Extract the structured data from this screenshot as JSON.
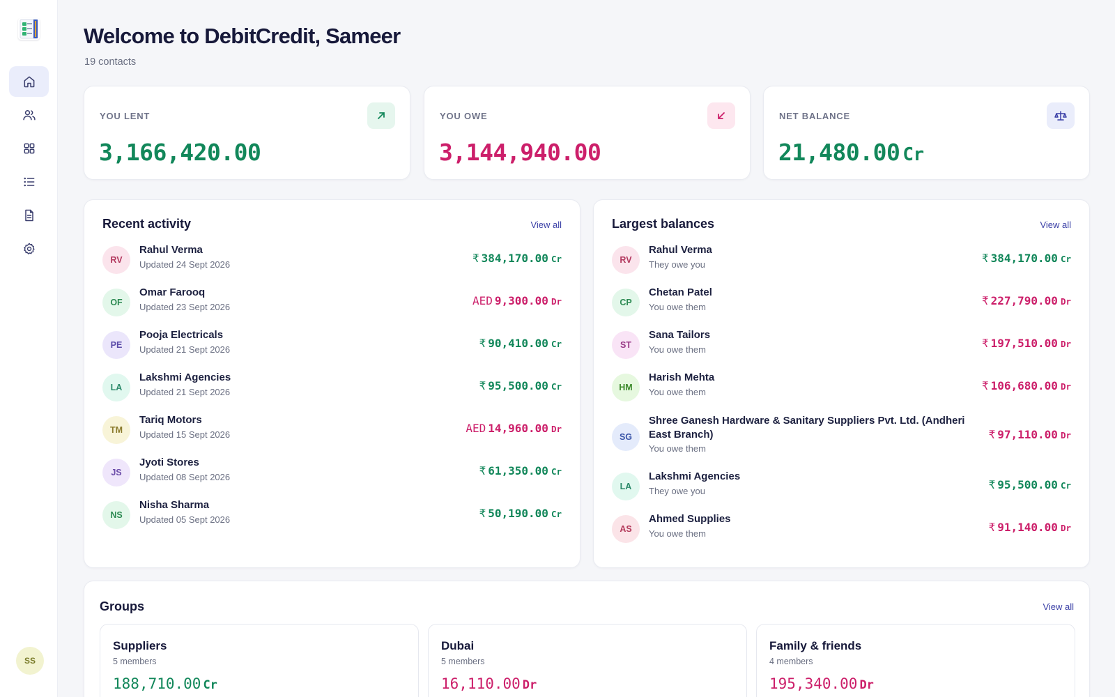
{
  "app": {
    "name": "DebitCredit"
  },
  "sidebar": {
    "nav": [
      {
        "icon": "home-icon",
        "active": true
      },
      {
        "icon": "users-icon",
        "active": false
      },
      {
        "icon": "grid-icon",
        "active": false
      },
      {
        "icon": "list-icon",
        "active": false
      },
      {
        "icon": "document-icon",
        "active": false
      },
      {
        "icon": "gear-icon",
        "active": false
      }
    ],
    "user_initials": "SS"
  },
  "header": {
    "title": "Welcome to DebitCredit, Sameer",
    "subtitle": "19 contacts"
  },
  "stats": {
    "lent": {
      "label": "YOU LENT",
      "value": "3,166,420.00",
      "icon": "arrow-up-right-icon",
      "color": "#12875a"
    },
    "owe": {
      "label": "YOU OWE",
      "value": "3,144,940.00",
      "icon": "arrow-down-left-icon",
      "color": "#cc1f6a"
    },
    "net": {
      "label": "NET BALANCE",
      "value": "21,480.00",
      "suffix": "Cr",
      "icon": "scale-icon",
      "color": "#12875a"
    }
  },
  "recent": {
    "title": "Recent activity",
    "view_all": "View all",
    "items": [
      {
        "initials": "RV",
        "name": "Rahul Verma",
        "meta": "Updated 24 Sept 2026",
        "currency": "₹",
        "amount": "384,170.00",
        "suffix": "Cr"
      },
      {
        "initials": "OF",
        "name": "Omar Farooq",
        "meta": "Updated 23 Sept 2026",
        "currency": "AED",
        "amount": "9,300.00",
        "suffix": "Dr"
      },
      {
        "initials": "PE",
        "name": "Pooja Electricals",
        "meta": "Updated 21 Sept 2026",
        "currency": "₹",
        "amount": "90,410.00",
        "suffix": "Cr"
      },
      {
        "initials": "LA",
        "name": "Lakshmi Agencies",
        "meta": "Updated 21 Sept 2026",
        "currency": "₹",
        "amount": "95,500.00",
        "suffix": "Cr"
      },
      {
        "initials": "TM",
        "name": "Tariq Motors",
        "meta": "Updated 15 Sept 2026",
        "currency": "AED",
        "amount": "14,960.00",
        "suffix": "Dr"
      },
      {
        "initials": "JS",
        "name": "Jyoti Stores",
        "meta": "Updated 08 Sept 2026",
        "currency": "₹",
        "amount": "61,350.00",
        "suffix": "Cr"
      },
      {
        "initials": "NS",
        "name": "Nisha Sharma",
        "meta": "Updated 05 Sept 2026",
        "currency": "₹",
        "amount": "50,190.00",
        "suffix": "Cr"
      }
    ]
  },
  "largest": {
    "title": "Largest balances",
    "view_all": "View all",
    "items": [
      {
        "initials": "RV",
        "name": "Rahul Verma",
        "meta": "They owe you",
        "currency": "₹",
        "amount": "384,170.00",
        "suffix": "Cr"
      },
      {
        "initials": "CP",
        "name": "Chetan Patel",
        "meta": "You owe them",
        "currency": "₹",
        "amount": "227,790.00",
        "suffix": "Dr"
      },
      {
        "initials": "ST",
        "name": "Sana Tailors",
        "meta": "You owe them",
        "currency": "₹",
        "amount": "197,510.00",
        "suffix": "Dr"
      },
      {
        "initials": "HM",
        "name": "Harish Mehta",
        "meta": "You owe them",
        "currency": "₹",
        "amount": "106,680.00",
        "suffix": "Dr"
      },
      {
        "initials": "SG",
        "name": "Shree Ganesh Hardware & Sanitary Suppliers Pvt. Ltd. (Andheri East Branch)",
        "meta": "You owe them",
        "currency": "₹",
        "amount": "97,110.00",
        "suffix": "Dr"
      },
      {
        "initials": "LA",
        "name": "Lakshmi Agencies",
        "meta": "They owe you",
        "currency": "₹",
        "amount": "95,500.00",
        "suffix": "Cr"
      },
      {
        "initials": "AS",
        "name": "Ahmed Supplies",
        "meta": "You owe them",
        "currency": "₹",
        "amount": "91,140.00",
        "suffix": "Dr"
      }
    ]
  },
  "groups": {
    "title": "Groups",
    "view_all": "View all",
    "items": [
      {
        "name": "Suppliers",
        "members": "5 members",
        "amount": "188,710.00",
        "suffix": "Cr"
      },
      {
        "name": "Dubai",
        "members": "5 members",
        "amount": "16,110.00",
        "suffix": "Dr"
      },
      {
        "name": "Family & friends",
        "members": "4 members",
        "amount": "195,340.00",
        "suffix": "Dr"
      }
    ]
  },
  "colors": {
    "credit": "#12875a",
    "debit": "#cc1f6a",
    "accent": "#3a3fa6"
  }
}
